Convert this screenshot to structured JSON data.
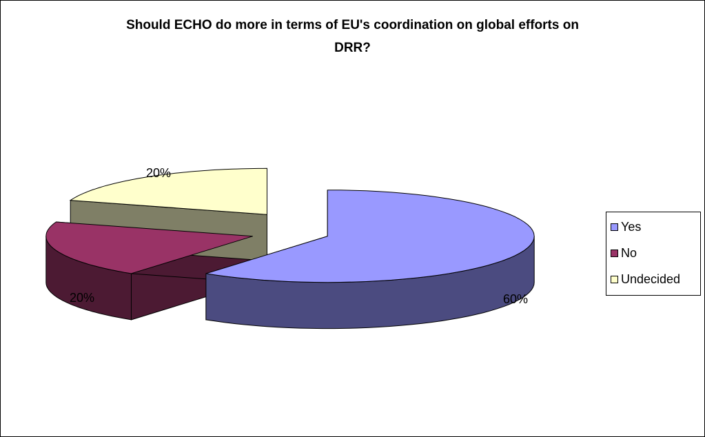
{
  "chart_data": {
    "type": "pie",
    "title": "Should ECHO do more in terms of EU's coordination on global efforts on DRR?",
    "title_lines": [
      "Should ECHO do more in terms of EU's coordination on global efforts on",
      "DRR?"
    ],
    "style": "3d-exploded",
    "series": [
      {
        "name": "",
        "labels": [
          "Yes",
          "No",
          "Undecided"
        ],
        "values": [
          60,
          20,
          20
        ],
        "data_labels": [
          "60%",
          "20%",
          "20%"
        ]
      }
    ],
    "colors": {
      "Yes": {
        "top": "#9999ff",
        "side": "#4b4b80"
      },
      "No": {
        "top": "#993366",
        "side": "#4c1a33"
      },
      "Undecided": {
        "top": "#ffffcc",
        "side": "#7f7f66"
      }
    },
    "legend_position": "right"
  }
}
